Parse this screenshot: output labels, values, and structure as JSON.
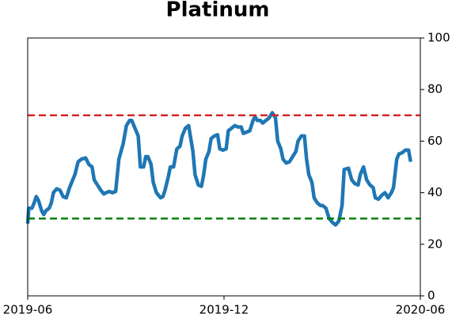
{
  "chart_data": {
    "type": "line",
    "title": "Platinum",
    "x": [
      0,
      1,
      4,
      6,
      8,
      10,
      13,
      15,
      17,
      20,
      22,
      24,
      27,
      30,
      33,
      36,
      39,
      42,
      44,
      47,
      50,
      54,
      57,
      60,
      62,
      65,
      68,
      71,
      73,
      76,
      79,
      82,
      85,
      87,
      89,
      92,
      95,
      97,
      100,
      103,
      105,
      108,
      110,
      112,
      115,
      117,
      120,
      122,
      124,
      126,
      128,
      131,
      133,
      136,
      139,
      142,
      144,
      147,
      150,
      152,
      154,
      156,
      159,
      162,
      164,
      166,
      169,
      171,
      174,
      177,
      179,
      182,
      185,
      187,
      190,
      193,
      196,
      199,
      201,
      204,
      207,
      210,
      212,
      214,
      217,
      219,
      222,
      225,
      228,
      231,
      233,
      236,
      238,
      241,
      244,
      247,
      250,
      252,
      255,
      258,
      260,
      262,
      265,
      267,
      270,
      273,
      275,
      278,
      281,
      284,
      287,
      290,
      293,
      295,
      299,
      302,
      305,
      308,
      310,
      313,
      316,
      319,
      322,
      324,
      327,
      330,
      333,
      336,
      339,
      341,
      344,
      346,
      349,
      352,
      355,
      357
    ],
    "series": [
      {
        "color": "#1f77b4",
        "values": [
          28,
          34,
          34,
          36,
          38.5,
          37,
          33,
          31.5,
          33,
          34,
          36,
          40,
          41.5,
          41,
          38.5,
          38,
          42,
          45,
          47,
          52,
          53,
          53.5,
          51,
          50,
          45,
          43,
          41,
          39.5,
          40,
          40.5,
          40,
          40.5,
          53,
          56,
          59,
          66,
          68,
          68,
          65,
          62,
          50,
          50,
          54,
          54,
          51,
          44,
          40,
          39,
          38,
          38.5,
          41,
          46,
          50,
          50,
          57,
          58,
          62,
          65,
          66,
          61,
          56,
          47,
          43,
          42.5,
          47,
          53,
          56,
          61,
          62,
          62.5,
          57,
          56.5,
          57,
          64,
          65,
          66,
          65.5,
          65.5,
          63,
          63.5,
          64,
          68,
          69.5,
          68,
          68,
          67,
          68,
          69,
          71,
          69,
          60,
          57,
          53,
          51.5,
          52,
          54,
          56,
          60,
          62,
          62,
          53,
          47,
          44,
          38,
          36,
          35,
          35,
          34,
          30,
          28.5,
          27.5,
          29,
          35,
          49,
          49.5,
          45,
          43.5,
          43,
          47,
          50,
          45,
          43,
          42,
          38,
          37.5,
          39,
          40,
          38,
          40,
          42,
          53,
          55,
          55.5,
          56.5,
          56.5,
          52
        ]
      }
    ],
    "xlim": [
      0,
      366
    ],
    "xticks": [
      {
        "value": 0,
        "label": "2019-06"
      },
      {
        "value": 183,
        "label": "2019-12"
      },
      {
        "value": 366,
        "label": "2020-06"
      }
    ],
    "ylim": [
      0,
      100
    ],
    "yticks": [
      0,
      20,
      40,
      60,
      80,
      100
    ],
    "y_axis_side": "right",
    "hlines": [
      {
        "value": 70,
        "color": "#d62728"
      },
      {
        "value": 30,
        "color": "#008000"
      }
    ]
  }
}
